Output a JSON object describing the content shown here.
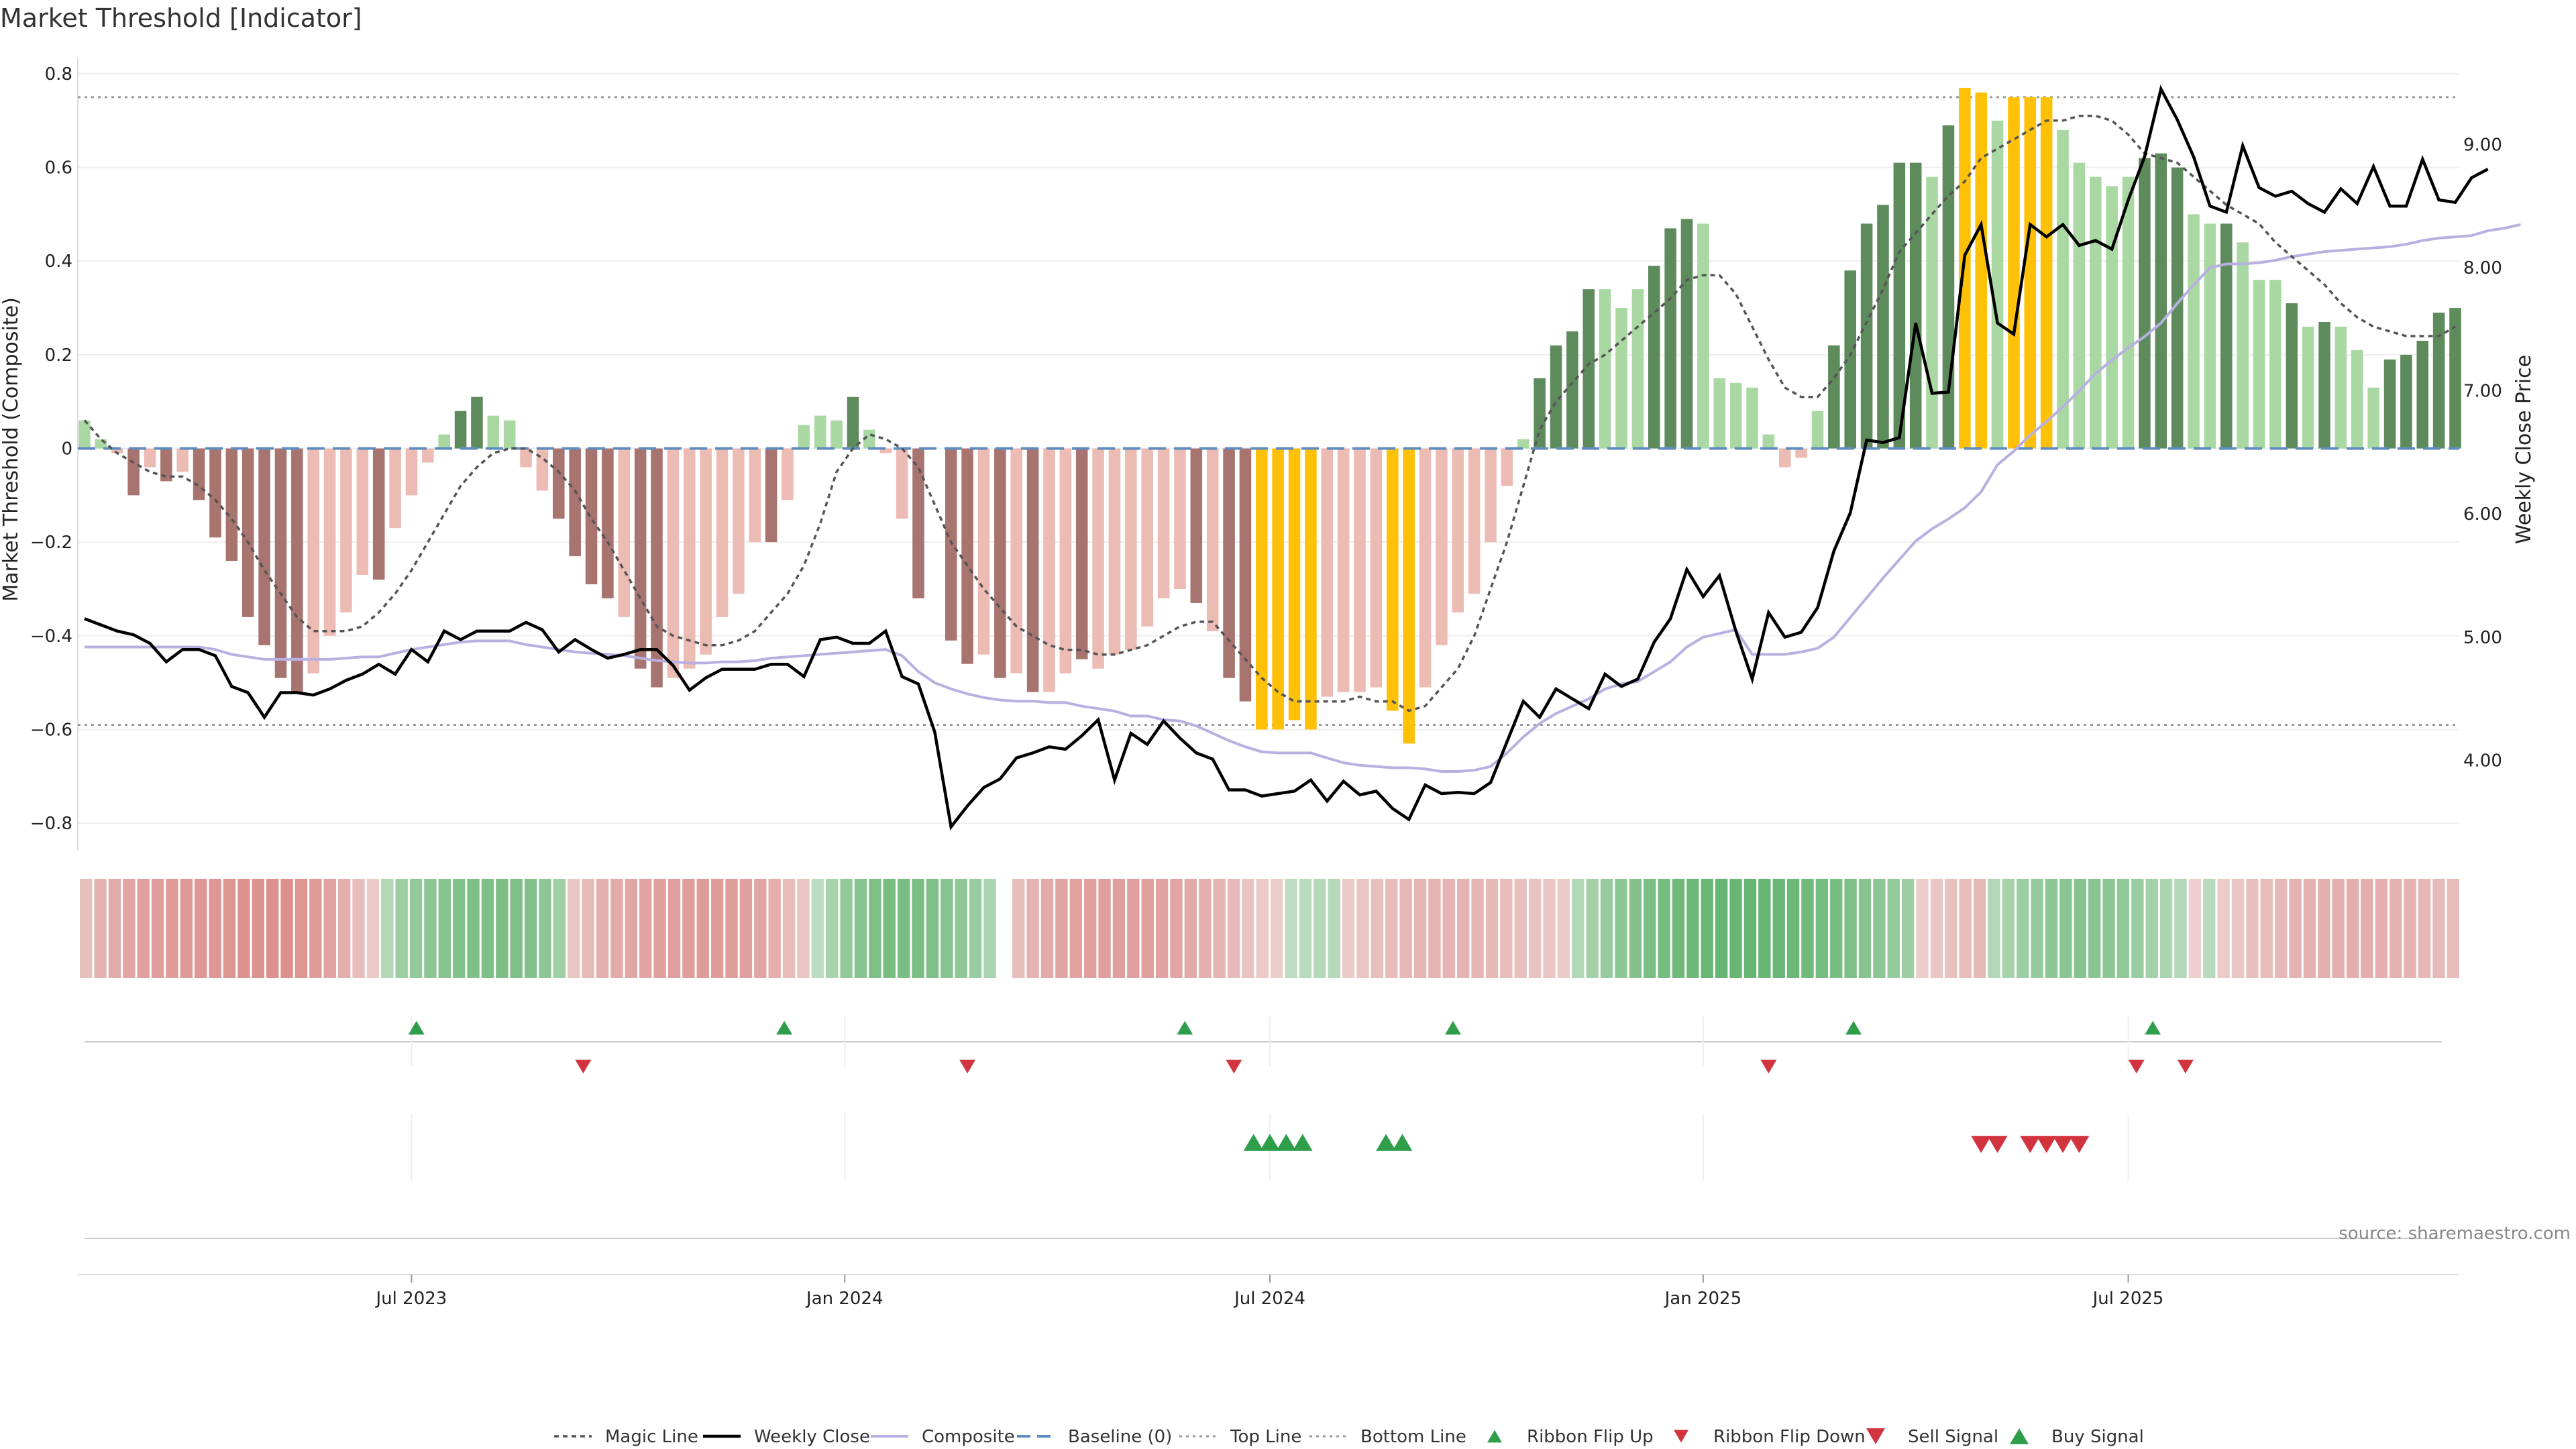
{
  "chart_data": {
    "type": "bar",
    "title": "Market Threshold [Indicator]",
    "ylabel_left": "Market Threshold (Composite)",
    "ylabel_right": "Weekly Close Price",
    "source": "source: sharemaestro.com",
    "left_axis": {
      "ylim": [
        -0.85,
        0.82
      ],
      "ticks": [
        -0.8,
        -0.6,
        -0.4,
        -0.2,
        0,
        0.2,
        0.4,
        0.6,
        0.8
      ],
      "tick_labels": [
        "−0.8",
        "−0.6",
        "−0.4",
        "−0.2",
        "0",
        "0.2",
        "0.4",
        "0.6",
        "0.8"
      ]
    },
    "right_axis": {
      "ylim": [
        3.3,
        9.65
      ],
      "ticks": [
        4,
        5,
        6,
        7,
        8,
        9
      ],
      "tick_labels": [
        "4.00",
        "5.00",
        "6.00",
        "7.00",
        "8.00",
        "9.00"
      ]
    },
    "x_tick_labels": [
      "Jul 2023",
      "Jan 2024",
      "Jul 2024",
      "Jan 2025",
      "Jul 2025"
    ],
    "x_tick_weeks": [
      20,
      46.5,
      72.5,
      99,
      125
    ],
    "top_line": 0.75,
    "bottom_line": -0.59,
    "baseline": 0,
    "bar_values": [
      0.06,
      0.02,
      -0.01,
      -0.1,
      -0.04,
      -0.07,
      -0.05,
      -0.11,
      -0.19,
      -0.24,
      -0.36,
      -0.42,
      -0.49,
      -0.52,
      -0.48,
      -0.4,
      -0.35,
      -0.27,
      -0.28,
      -0.17,
      -0.1,
      -0.03,
      0.03,
      0.08,
      0.11,
      0.07,
      0.06,
      -0.04,
      -0.09,
      -0.15,
      -0.23,
      -0.29,
      -0.32,
      -0.36,
      -0.47,
      -0.51,
      -0.49,
      -0.47,
      -0.44,
      -0.36,
      -0.31,
      -0.2,
      -0.2,
      -0.11,
      0.05,
      0.07,
      0.06,
      0.11,
      0.04,
      -0.01,
      -0.15,
      -0.32,
      0.0,
      -0.41,
      -0.46,
      -0.44,
      -0.49,
      -0.48,
      -0.52,
      -0.52,
      -0.48,
      -0.45,
      -0.47,
      -0.44,
      -0.43,
      -0.38,
      -0.32,
      -0.3,
      -0.33,
      -0.39,
      -0.49,
      -0.54,
      -0.6,
      -0.6,
      -0.58,
      -0.6,
      -0.53,
      -0.52,
      -0.52,
      -0.51,
      -0.56,
      -0.63,
      -0.51,
      -0.42,
      -0.35,
      -0.31,
      -0.2,
      -0.08,
      0.02,
      0.15,
      0.22,
      0.25,
      0.34,
      0.34,
      0.3,
      0.34,
      0.39,
      0.47,
      0.49,
      0.48,
      0.15,
      0.14,
      0.13,
      0.03,
      -0.04,
      -0.02,
      0.08,
      0.22,
      0.38,
      0.48,
      0.52,
      0.61,
      0.61,
      0.58,
      0.69,
      0.77,
      0.76,
      0.7,
      0.75,
      0.75,
      0.75,
      0.68,
      0.61,
      0.58,
      0.56,
      0.58,
      0.62,
      0.63,
      0.6,
      0.5,
      0.48,
      0.48,
      0.44,
      0.36,
      0.36,
      0.31,
      0.26,
      0.27,
      0.26,
      0.21,
      0.13,
      0.19,
      0.2,
      0.23,
      0.29,
      0.3
    ],
    "bar_class": [
      "lg",
      "lg",
      "lr",
      "dr",
      "lr",
      "dr",
      "lr",
      "dr",
      "dr",
      "dr",
      "dr",
      "dr",
      "dr",
      "dr",
      "lr",
      "lr",
      "lr",
      "lr",
      "dr",
      "lr",
      "lr",
      "lr",
      "lg",
      "dg",
      "dg",
      "lg",
      "lg",
      "lr",
      "lr",
      "dr",
      "dr",
      "dr",
      "dr",
      "lr",
      "dr",
      "dr",
      "lr",
      "lr",
      "lr",
      "lr",
      "lr",
      "lr",
      "dr",
      "lr",
      "lg",
      "lg",
      "lg",
      "dg",
      "lg",
      "lr",
      "lr",
      "dr",
      "lr",
      "dr",
      "dr",
      "lr",
      "dr",
      "lr",
      "dr",
      "lr",
      "lr",
      "dr",
      "lr",
      "lr",
      "lr",
      "lr",
      "lr",
      "lr",
      "dr",
      "lr",
      "dr",
      "dr",
      "yl",
      "yl",
      "yl",
      "yl",
      "lr",
      "lr",
      "lr",
      "lr",
      "yl",
      "yl",
      "lr",
      "lr",
      "lr",
      "lr",
      "lr",
      "lr",
      "lg",
      "dg",
      "dg",
      "dg",
      "dg",
      "lg",
      "lg",
      "lg",
      "dg",
      "dg",
      "dg",
      "lg",
      "lg",
      "lg",
      "lg",
      "lg",
      "lr",
      "lr",
      "lg",
      "dg",
      "dg",
      "dg",
      "dg",
      "dg",
      "dg",
      "lg",
      "dg",
      "yl",
      "yl",
      "lg",
      "yl",
      "yl",
      "yl",
      "lg",
      "lg",
      "lg",
      "lg",
      "lg",
      "dg",
      "dg",
      "dg",
      "lg",
      "lg",
      "dg",
      "lg",
      "lg",
      "lg",
      "dg",
      "lg",
      "dg",
      "lg",
      "lg",
      "lg",
      "dg",
      "dg",
      "dg",
      "dg",
      "dg"
    ],
    "series": [
      {
        "name": "Weekly Close",
        "axis": "right",
        "values": [
          5.15,
          5.1,
          5.05,
          5.02,
          4.95,
          4.8,
          4.9,
          4.9,
          4.85,
          4.6,
          4.55,
          4.35,
          4.55,
          4.55,
          4.53,
          4.58,
          4.65,
          4.7,
          4.78,
          4.7,
          4.9,
          4.8,
          5.05,
          4.98,
          5.05,
          5.05,
          5.05,
          5.12,
          5.06,
          4.88,
          4.98,
          4.9,
          4.83,
          4.86,
          4.9,
          4.9,
          4.77,
          4.57,
          4.67,
          4.74,
          4.74,
          4.74,
          4.78,
          4.78,
          4.68,
          4.98,
          5.0,
          4.95,
          4.95,
          5.05,
          4.68,
          4.62,
          4.23,
          3.46,
          3.63,
          3.78,
          3.85,
          4.02,
          4.06,
          4.11,
          4.09,
          4.2,
          4.33,
          3.84,
          4.22,
          4.13,
          4.32,
          4.18,
          4.06,
          4.01,
          3.76,
          3.76,
          3.71,
          3.73,
          3.75,
          3.84,
          3.67,
          3.83,
          3.72,
          3.75,
          3.61,
          3.52,
          3.8,
          3.73,
          3.74,
          3.73,
          3.82,
          4.15,
          4.48,
          4.35,
          4.58,
          4.5,
          4.42,
          4.7,
          4.6,
          4.66,
          4.96,
          5.15,
          5.55,
          5.33,
          5.5,
          5.05,
          4.66,
          5.2,
          5.0,
          5.04,
          5.24,
          5.7,
          6.01,
          6.6,
          6.58,
          6.62,
          7.55,
          6.98,
          6.99,
          8.1,
          8.35,
          7.55,
          7.46,
          8.35,
          8.25,
          8.35,
          8.18,
          8.22,
          8.15,
          8.55,
          8.9,
          9.45,
          9.2,
          8.9,
          8.5,
          8.45,
          8.99,
          8.65,
          8.58,
          8.62,
          8.52,
          8.45,
          8.64,
          8.52,
          8.82,
          8.5,
          8.5,
          8.88,
          8.55,
          8.53,
          8.73,
          8.8
        ]
      },
      {
        "name": "Composite",
        "axis": "right",
        "values": [
          4.92,
          4.92,
          4.92,
          4.92,
          4.92,
          4.92,
          4.92,
          4.92,
          4.9,
          4.86,
          4.84,
          4.82,
          4.82,
          4.82,
          4.82,
          4.82,
          4.83,
          4.84,
          4.84,
          4.87,
          4.9,
          4.92,
          4.94,
          4.96,
          4.97,
          4.97,
          4.97,
          4.94,
          4.92,
          4.9,
          4.88,
          4.87,
          4.86,
          4.85,
          4.83,
          4.81,
          4.8,
          4.79,
          4.79,
          4.8,
          4.8,
          4.81,
          4.83,
          4.84,
          4.85,
          4.86,
          4.87,
          4.88,
          4.89,
          4.9,
          4.85,
          4.72,
          4.63,
          4.58,
          4.54,
          4.51,
          4.49,
          4.48,
          4.48,
          4.47,
          4.47,
          4.44,
          4.42,
          4.4,
          4.36,
          4.36,
          4.33,
          4.32,
          4.28,
          4.22,
          4.16,
          4.11,
          4.07,
          4.06,
          4.06,
          4.06,
          4.02,
          3.98,
          3.96,
          3.95,
          3.94,
          3.94,
          3.93,
          3.91,
          3.91,
          3.92,
          3.95,
          4.06,
          4.19,
          4.3,
          4.38,
          4.44,
          4.5,
          4.58,
          4.62,
          4.64,
          4.72,
          4.8,
          4.92,
          5.0,
          5.03,
          5.06,
          4.86,
          4.86,
          4.86,
          4.88,
          4.91,
          5.0,
          5.16,
          5.32,
          5.48,
          5.63,
          5.78,
          5.88,
          5.96,
          6.05,
          6.18,
          6.4,
          6.51,
          6.64,
          6.75,
          6.87,
          7.0,
          7.14,
          7.25,
          7.35,
          7.44,
          7.55,
          7.71,
          7.86,
          8.0,
          8.03,
          8.03,
          8.04,
          8.06,
          8.09,
          8.11,
          8.13,
          8.14,
          8.15,
          8.16,
          8.17,
          8.19,
          8.22,
          8.24,
          8.25,
          8.26,
          8.3,
          8.32,
          8.35
        ]
      },
      {
        "name": "Magic Line",
        "axis": "left",
        "values": [
          0.06,
          0.02,
          -0.01,
          -0.03,
          -0.05,
          -0.06,
          -0.06,
          -0.08,
          -0.11,
          -0.15,
          -0.2,
          -0.26,
          -0.31,
          -0.36,
          -0.39,
          -0.39,
          -0.39,
          -0.38,
          -0.35,
          -0.31,
          -0.26,
          -0.2,
          -0.14,
          -0.08,
          -0.04,
          -0.01,
          0.0,
          0.0,
          -0.02,
          -0.05,
          -0.09,
          -0.15,
          -0.2,
          -0.26,
          -0.32,
          -0.38,
          -0.4,
          -0.41,
          -0.42,
          -0.42,
          -0.41,
          -0.39,
          -0.35,
          -0.31,
          -0.25,
          -0.16,
          -0.05,
          0.0,
          0.03,
          0.02,
          0.0,
          -0.04,
          -0.12,
          -0.2,
          -0.25,
          -0.3,
          -0.34,
          -0.38,
          -0.4,
          -0.42,
          -0.43,
          -0.43,
          -0.44,
          -0.44,
          -0.43,
          -0.42,
          -0.4,
          -0.38,
          -0.37,
          -0.37,
          -0.41,
          -0.45,
          -0.49,
          -0.52,
          -0.54,
          -0.54,
          -0.54,
          -0.54,
          -0.53,
          -0.54,
          -0.54,
          -0.56,
          -0.55,
          -0.51,
          -0.47,
          -0.4,
          -0.3,
          -0.2,
          -0.08,
          0.04,
          0.1,
          0.14,
          0.18,
          0.2,
          0.23,
          0.26,
          0.29,
          0.32,
          0.36,
          0.37,
          0.37,
          0.33,
          0.26,
          0.19,
          0.13,
          0.11,
          0.11,
          0.15,
          0.2,
          0.27,
          0.34,
          0.42,
          0.46,
          0.5,
          0.54,
          0.57,
          0.62,
          0.64,
          0.66,
          0.68,
          0.7,
          0.7,
          0.71,
          0.71,
          0.7,
          0.67,
          0.63,
          0.62,
          0.61,
          0.58,
          0.55,
          0.52,
          0.5,
          0.48,
          0.44,
          0.41,
          0.38,
          0.35,
          0.31,
          0.28,
          0.26,
          0.25,
          0.24,
          0.24,
          0.24,
          0.26
        ]
      }
    ],
    "ribbon_values": [
      -0.28,
      -0.42,
      -0.5,
      -0.55,
      -0.6,
      -0.63,
      -0.66,
      -0.68,
      -0.7,
      -0.7,
      -0.72,
      -0.74,
      -0.75,
      -0.76,
      -0.76,
      -0.72,
      -0.66,
      -0.58,
      -0.46,
      -0.3,
      -0.16,
      0.2,
      0.35,
      0.42,
      0.46,
      0.5,
      0.52,
      0.55,
      0.56,
      0.56,
      0.55,
      0.52,
      0.45,
      0.34,
      -0.22,
      -0.34,
      -0.44,
      -0.5,
      -0.54,
      -0.57,
      -0.6,
      -0.62,
      -0.63,
      -0.64,
      -0.64,
      -0.63,
      -0.6,
      -0.55,
      -0.45,
      -0.32,
      -0.22,
      0.12,
      0.28,
      0.42,
      0.5,
      0.56,
      0.6,
      0.6,
      0.58,
      0.55,
      0.5,
      0.44,
      0.36,
      0.24,
      null,
      -0.3,
      -0.42,
      -0.5,
      -0.55,
      -0.58,
      -0.6,
      -0.62,
      -0.62,
      -0.62,
      -0.6,
      -0.58,
      -0.55,
      -0.5,
      -0.45,
      -0.4,
      -0.34,
      -0.25,
      -0.18,
      -0.14,
      0.12,
      0.15,
      0.17,
      0.17,
      -0.16,
      -0.22,
      -0.28,
      -0.32,
      -0.36,
      -0.38,
      -0.4,
      -0.4,
      -0.4,
      -0.38,
      -0.35,
      -0.32,
      -0.28,
      -0.25,
      -0.2,
      -0.16,
      0.2,
      0.3,
      0.38,
      0.45,
      0.52,
      0.58,
      0.62,
      0.66,
      0.68,
      0.7,
      0.72,
      0.72,
      0.72,
      0.72,
      0.7,
      0.68,
      0.65,
      0.62,
      0.6,
      0.55,
      0.5,
      0.45,
      0.4,
      0.35,
      -0.15,
      -0.22,
      -0.28,
      -0.32,
      -0.35,
      0.2,
      0.28,
      0.35,
      0.4,
      0.45,
      0.48,
      0.5,
      0.48,
      0.46,
      0.42,
      0.36,
      0.3,
      0.24,
      0.2,
      -0.12,
      0.15,
      -0.15,
      -0.22,
      -0.28,
      -0.32,
      -0.36,
      -0.4,
      -0.42,
      -0.44,
      -0.45,
      -0.46,
      -0.46,
      -0.45,
      -0.43,
      -0.4,
      -0.38,
      -0.34,
      -0.3
    ],
    "ribbon_flip_up_weeks": [
      20.3,
      42.8,
      67.3,
      83.7,
      108.2,
      126.5
    ],
    "ribbon_flip_down_weeks": [
      30.5,
      54.0,
      70.3,
      103.0,
      125.5,
      128.5
    ],
    "buy_signal_weeks": [
      71.5,
      72.5,
      73.5,
      74.5,
      79.6,
      80.6
    ],
    "sell_signal_weeks": [
      116.0,
      117.0,
      119.0,
      120.0,
      121.0,
      122.0
    ],
    "legend": [
      "Magic Line",
      "Weekly Close",
      "Composite",
      "Baseline (0)",
      "Top Line",
      "Bottom Line",
      "Ribbon Flip Up",
      "Ribbon Flip Down",
      "Sell Signal",
      "Buy Signal"
    ],
    "colors": {
      "dark_green": "#5e8b5c",
      "light_green": "#a9d8a3",
      "dark_red": "#a87470",
      "light_red": "#ecbbb4",
      "yellow": "#ffc107",
      "close_line": "#000000",
      "composite_line": "#b8b0e0",
      "magic_line": "#555555",
      "baseline": "#5f8dbf",
      "threshold_lines": "#999999",
      "flip_up": "#2e9e4a",
      "flip_down": "#d1343f",
      "ribbon_green": "#3fa34d",
      "ribbon_red": "#d67a76"
    }
  }
}
